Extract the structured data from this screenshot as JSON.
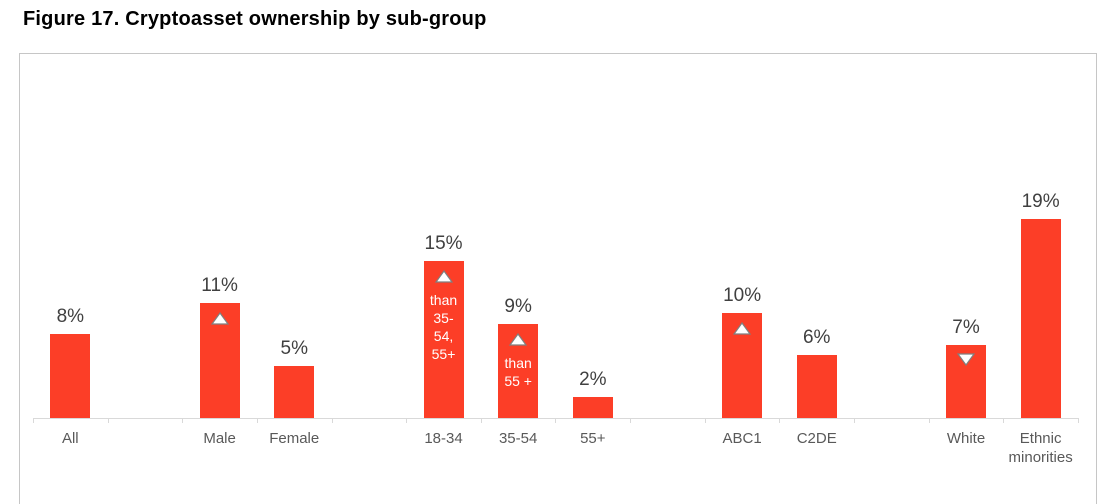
{
  "page": {
    "title": "Figure 17. Cryptoasset ownership by sub-group"
  },
  "chart_data": {
    "type": "bar",
    "title": "Figure 17. Cryptoasset ownership by sub-group",
    "categories": [
      "All",
      "Male",
      "Female",
      "18-34",
      "35-54",
      "55+",
      "ABC1",
      "C2DE",
      "White",
      "Ethnic minorities"
    ],
    "values": [
      8,
      11,
      5,
      15,
      9,
      2,
      10,
      6,
      7,
      19
    ],
    "data_labels": [
      "8%",
      "11%",
      "5%",
      "15%",
      "9%",
      "2%",
      "10%",
      "6%",
      "7%",
      "19%"
    ],
    "markers": [
      "none",
      "up",
      "none",
      "up",
      "up",
      "none",
      "up",
      "none",
      "down",
      "none"
    ],
    "bar_annotations": [
      "",
      "",
      "",
      "than\n35-\n54,\n55+",
      "than\n55 +",
      "",
      "",
      "",
      "",
      ""
    ],
    "slot_indices": [
      0,
      2,
      3,
      5,
      6,
      7,
      9,
      10,
      12,
      13
    ],
    "total_slots": 14,
    "xlabel": "",
    "ylabel": "",
    "ylim": [
      0,
      35
    ],
    "grid": "off",
    "legend": "none",
    "colors": {
      "bar": "#fc3e27",
      "value_label": "#404040",
      "category_label": "#595959",
      "annotation_text": "#ffffff",
      "marker_fill": "#ffffff",
      "marker_stroke": "#7f7f7f",
      "axis_line": "#d9d9d9",
      "panel_border": "#c6c6c6",
      "title": "#000000"
    }
  }
}
